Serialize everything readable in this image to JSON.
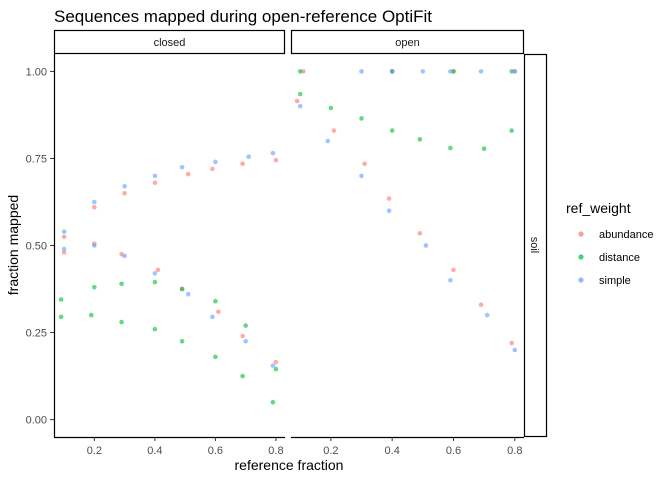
{
  "chart_data": {
    "type": "scatter",
    "title": "Sequences mapped during open-reference OptiFit",
    "xlabel": "reference fraction",
    "ylabel": "fraction mapped",
    "xlim": [
      0.07,
      0.83
    ],
    "ylim": [
      -0.05,
      1.05
    ],
    "x_ticks": [
      0.2,
      0.4,
      0.6,
      0.8
    ],
    "x_tick_labels": [
      "0.2",
      "0.4",
      "0.6",
      "0.8"
    ],
    "y_ticks": [
      0.0,
      0.25,
      0.5,
      0.75,
      1.0
    ],
    "y_tick_labels": [
      "0.00",
      "0.25",
      "0.50",
      "0.75",
      "1.00"
    ],
    "facet_columns": [
      "closed",
      "open"
    ],
    "facet_row": "soil",
    "legend": {
      "title": "ref_weight",
      "position": "right",
      "entries": [
        {
          "label": "abundance",
          "color": "#F8766D"
        },
        {
          "label": "distance",
          "color": "#00BA38"
        },
        {
          "label": "simple",
          "color": "#619CFF"
        }
      ]
    },
    "grid": false,
    "panels": [
      {
        "facet": "closed",
        "series": [
          {
            "name": "abundance",
            "color": "#F8766D",
            "points": [
              {
                "x": 0.1,
                "y": 0.525
              },
              {
                "x": 0.1,
                "y": 0.48
              },
              {
                "x": 0.2,
                "y": 0.61
              },
              {
                "x": 0.2,
                "y": 0.505
              },
              {
                "x": 0.3,
                "y": 0.65
              },
              {
                "x": 0.29,
                "y": 0.475
              },
              {
                "x": 0.4,
                "y": 0.68
              },
              {
                "x": 0.41,
                "y": 0.43
              },
              {
                "x": 0.51,
                "y": 0.705
              },
              {
                "x": 0.49,
                "y": 0.375
              },
              {
                "x": 0.59,
                "y": 0.72
              },
              {
                "x": 0.61,
                "y": 0.31
              },
              {
                "x": 0.69,
                "y": 0.735
              },
              {
                "x": 0.69,
                "y": 0.24
              },
              {
                "x": 0.8,
                "y": 0.745
              },
              {
                "x": 0.8,
                "y": 0.165
              }
            ]
          },
          {
            "name": "distance",
            "color": "#00BA38",
            "points": [
              {
                "x": 0.09,
                "y": 0.345
              },
              {
                "x": 0.09,
                "y": 0.295
              },
              {
                "x": 0.2,
                "y": 0.38
              },
              {
                "x": 0.19,
                "y": 0.3
              },
              {
                "x": 0.29,
                "y": 0.39
              },
              {
                "x": 0.29,
                "y": 0.28
              },
              {
                "x": 0.4,
                "y": 0.395
              },
              {
                "x": 0.4,
                "y": 0.26
              },
              {
                "x": 0.49,
                "y": 0.375
              },
              {
                "x": 0.49,
                "y": 0.225
              },
              {
                "x": 0.6,
                "y": 0.34
              },
              {
                "x": 0.6,
                "y": 0.18
              },
              {
                "x": 0.7,
                "y": 0.27
              },
              {
                "x": 0.69,
                "y": 0.125
              },
              {
                "x": 0.8,
                "y": 0.145
              },
              {
                "x": 0.79,
                "y": 0.05
              }
            ]
          },
          {
            "name": "simple",
            "color": "#619CFF",
            "points": [
              {
                "x": 0.1,
                "y": 0.54
              },
              {
                "x": 0.1,
                "y": 0.49
              },
              {
                "x": 0.2,
                "y": 0.625
              },
              {
                "x": 0.2,
                "y": 0.5
              },
              {
                "x": 0.3,
                "y": 0.67
              },
              {
                "x": 0.3,
                "y": 0.47
              },
              {
                "x": 0.4,
                "y": 0.7
              },
              {
                "x": 0.4,
                "y": 0.42
              },
              {
                "x": 0.49,
                "y": 0.725
              },
              {
                "x": 0.51,
                "y": 0.36
              },
              {
                "x": 0.6,
                "y": 0.74
              },
              {
                "x": 0.59,
                "y": 0.295
              },
              {
                "x": 0.71,
                "y": 0.755
              },
              {
                "x": 0.7,
                "y": 0.225
              },
              {
                "x": 0.79,
                "y": 0.765
              },
              {
                "x": 0.79,
                "y": 0.155
              }
            ]
          }
        ]
      },
      {
        "facet": "open",
        "series": [
          {
            "name": "abundance",
            "color": "#F8766D",
            "points": [
              {
                "x": 0.11,
                "y": 1.0
              },
              {
                "x": 0.09,
                "y": 0.915
              },
              {
                "x": 0.21,
                "y": 0.83
              },
              {
                "x": 0.31,
                "y": 0.735
              },
              {
                "x": 0.4,
                "y": 1.0
              },
              {
                "x": 0.39,
                "y": 0.635
              },
              {
                "x": 0.6,
                "y": 1.0
              },
              {
                "x": 0.49,
                "y": 0.535
              },
              {
                "x": 0.6,
                "y": 0.43
              },
              {
                "x": 0.8,
                "y": 1.0
              },
              {
                "x": 0.69,
                "y": 0.33
              },
              {
                "x": 0.79,
                "y": 0.22
              }
            ]
          },
          {
            "name": "distance",
            "color": "#00BA38",
            "points": [
              {
                "x": 0.1,
                "y": 1.0
              },
              {
                "x": 0.1,
                "y": 0.935
              },
              {
                "x": 0.2,
                "y": 0.895
              },
              {
                "x": 0.3,
                "y": 0.865
              },
              {
                "x": 0.4,
                "y": 1.0
              },
              {
                "x": 0.4,
                "y": 0.83
              },
              {
                "x": 0.6,
                "y": 1.0
              },
              {
                "x": 0.49,
                "y": 0.805
              },
              {
                "x": 0.59,
                "y": 0.78
              },
              {
                "x": 0.79,
                "y": 1.0
              },
              {
                "x": 0.7,
                "y": 0.778
              },
              {
                "x": 0.79,
                "y": 0.83
              }
            ]
          },
          {
            "name": "simple",
            "color": "#619CFF",
            "points": [
              {
                "x": 0.1,
                "y": 0.9
              },
              {
                "x": 0.19,
                "y": 0.8
              },
              {
                "x": 0.3,
                "y": 1.0
              },
              {
                "x": 0.3,
                "y": 0.7
              },
              {
                "x": 0.4,
                "y": 1.0
              },
              {
                "x": 0.39,
                "y": 0.6
              },
              {
                "x": 0.5,
                "y": 1.0
              },
              {
                "x": 0.51,
                "y": 0.5
              },
              {
                "x": 0.59,
                "y": 1.0
              },
              {
                "x": 0.59,
                "y": 0.4
              },
              {
                "x": 0.69,
                "y": 1.0
              },
              {
                "x": 0.71,
                "y": 0.3
              },
              {
                "x": 0.8,
                "y": 1.0
              },
              {
                "x": 0.8,
                "y": 0.2
              }
            ]
          }
        ]
      }
    ]
  }
}
